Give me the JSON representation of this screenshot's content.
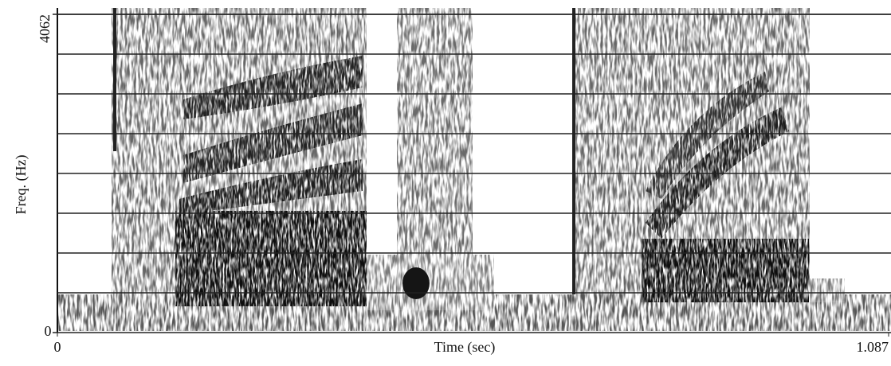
{
  "chart_data": {
    "type": "spectrogram",
    "xlabel": "Time (sec)",
    "ylabel": "Freq. (Hz)",
    "xlim": [
      0,
      1.087
    ],
    "ylim": [
      0,
      4062
    ],
    "xticks": [
      0,
      1.087
    ],
    "yticks": [
      0,
      4062
    ],
    "ygrid": [
      507.75,
      1015.5,
      1523.25,
      2031,
      2538.75,
      3046.5,
      3554.25,
      4062
    ]
  }
}
